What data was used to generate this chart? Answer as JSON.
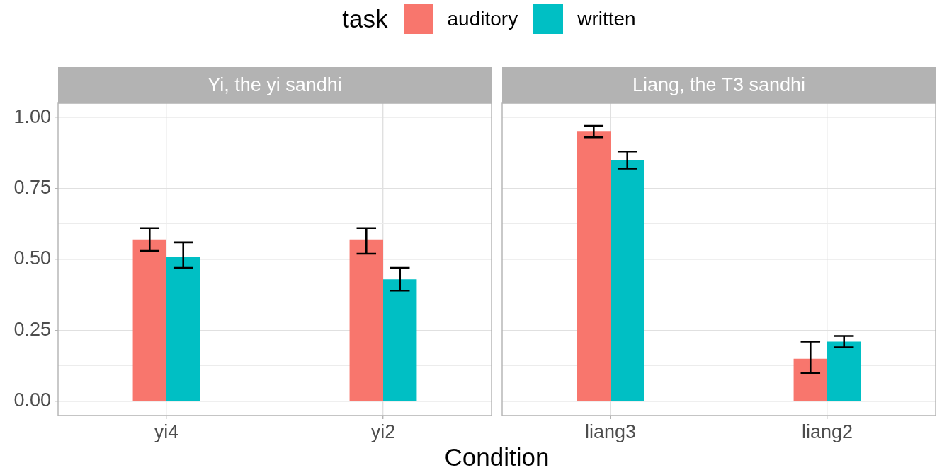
{
  "chart_data": [
    {
      "type": "bar",
      "title": "Yi, the yi sandhi",
      "xlabel": "Condition",
      "legend_title": "task",
      "legend": "top",
      "categories": [
        "yi4",
        "yi2"
      ],
      "series": [
        {
          "name": "auditory",
          "color": "#f8766d",
          "values": [
            0.57,
            0.57
          ],
          "errors": [
            [
              0.53,
              0.61
            ],
            [
              0.52,
              0.61
            ]
          ]
        },
        {
          "name": "written",
          "color": "#00bfc4",
          "values": [
            0.51,
            0.43
          ],
          "errors": [
            [
              0.47,
              0.56
            ],
            [
              0.39,
              0.47
            ]
          ]
        }
      ],
      "ylim": [
        -0.05,
        1.05
      ],
      "yticks": [
        {
          "value": 0,
          "label": "0.00"
        },
        {
          "value": 0.125,
          "label": null
        },
        {
          "value": 0.25,
          "label": "0.25"
        },
        {
          "value": 0.375,
          "label": null
        },
        {
          "value": 0.5,
          "label": "0.50"
        },
        {
          "value": 0.625,
          "label": null
        },
        {
          "value": 0.75,
          "label": "0.75"
        },
        {
          "value": 0.875,
          "label": null
        },
        {
          "value": 1,
          "label": "1.00"
        }
      ],
      "grid": true
    },
    {
      "type": "bar",
      "title": "Liang, the T3 sandhi",
      "categories": [
        "liang3",
        "liang2"
      ],
      "series": [
        {
          "color": "#f8766d",
          "values": [
            0.95,
            0.15
          ],
          "errors": [
            [
              0.93,
              0.97
            ],
            [
              0.1,
              0.21
            ]
          ]
        },
        {
          "color": "#00bfc4",
          "values": [
            0.85,
            0.21
          ],
          "errors": [
            [
              0.82,
              0.88
            ],
            [
              0.19,
              0.23
            ]
          ]
        }
      ],
      "ylim": [
        -0.05,
        1.05
      ],
      "yticks": [
        0,
        {
          "value": 0.125,
          "label": null
        },
        0.25,
        {
          "value": 0.375,
          "label": null
        },
        0.5,
        {
          "value": 0.625,
          "label": null
        },
        0.75,
        {
          "value": 0.875,
          "label": null
        },
        1
      ],
      "grid": true,
      "tick_labels": "x"
    }
  ]
}
